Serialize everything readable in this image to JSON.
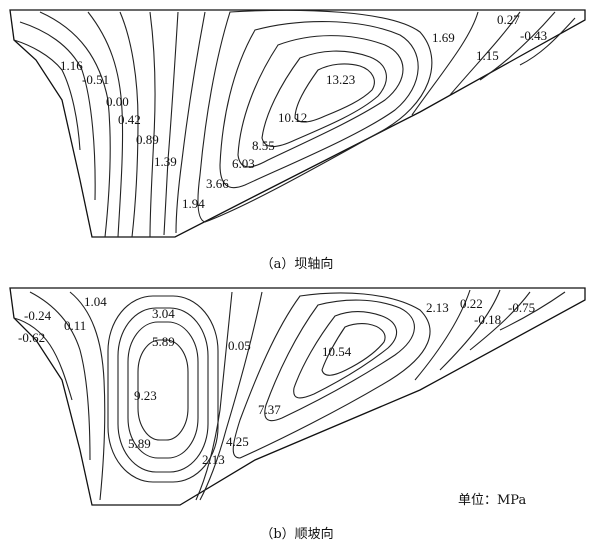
{
  "panel_a": {
    "caption": "（a）坝轴向",
    "labels": [
      "1.16",
      "-0.51",
      "0.00",
      "0.42",
      "0.89",
      "1.39",
      "1.94",
      "3.66",
      "6.03",
      "8.55",
      "10.12",
      "13.23",
      "1.69",
      "0.27",
      "-0.43",
      "1.15"
    ]
  },
  "panel_b": {
    "caption": "（b）顺坡向",
    "labels": [
      "-0.24",
      "-0.62",
      "0.11",
      "1.04",
      "3.04",
      "5.89",
      "9.23",
      "5.89",
      "0.05",
      "10.54",
      "7.37",
      "4.25",
      "2.13",
      "2.13",
      "0.22",
      "-0.18",
      "-0.75"
    ],
    "unit_label": "单位：MPa"
  }
}
